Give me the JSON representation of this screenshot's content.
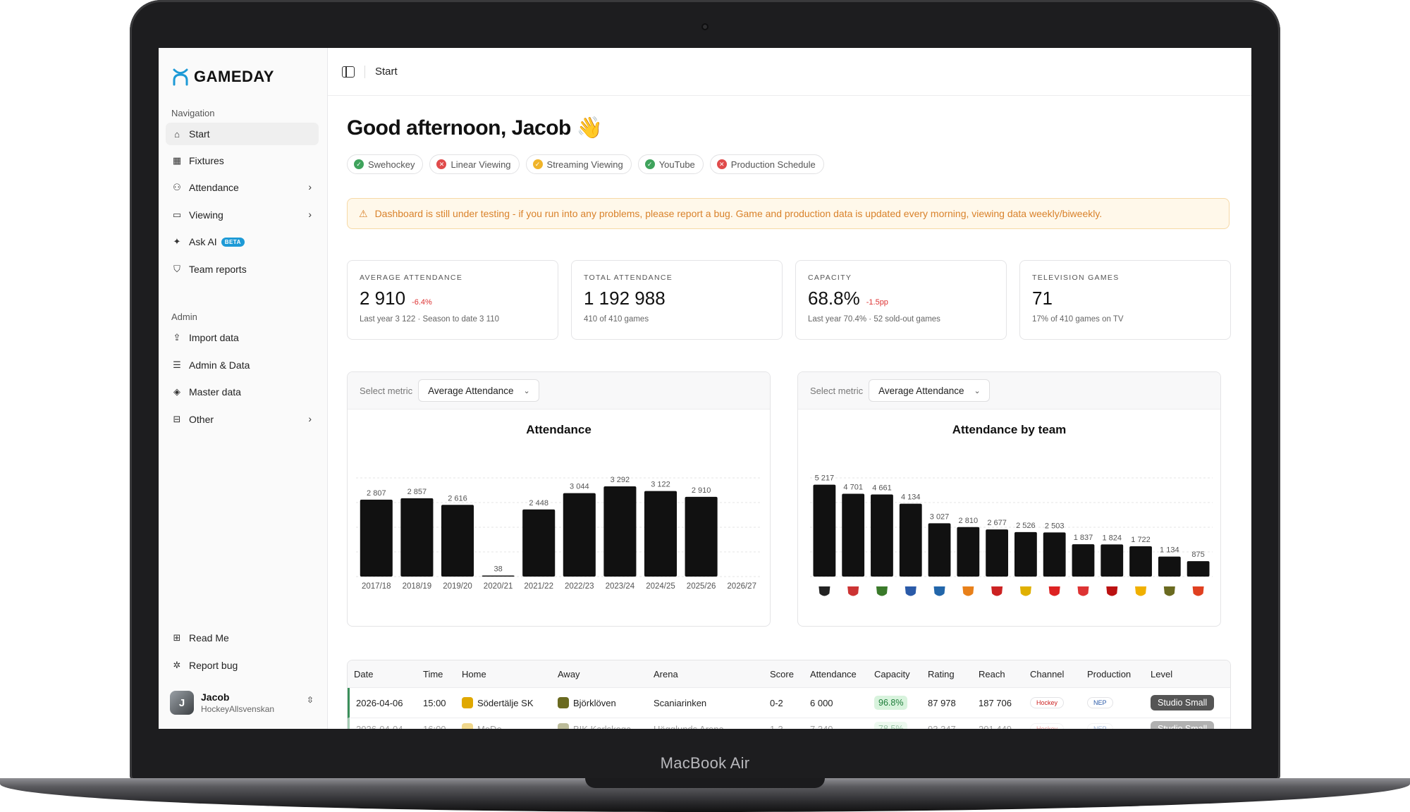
{
  "device": {
    "label": "MacBook Air"
  },
  "app": {
    "name": "GAMEDAY"
  },
  "sidebar": {
    "nav_title": "Navigation",
    "nav_items": [
      {
        "label": "Start",
        "icon": "home-icon"
      },
      {
        "label": "Fixtures",
        "icon": "calendar-icon"
      },
      {
        "label": "Attendance",
        "icon": "users-icon"
      },
      {
        "label": "Viewing",
        "icon": "tv-icon"
      },
      {
        "label": "Ask AI",
        "icon": "sparkles-icon",
        "badge": "BETA"
      },
      {
        "label": "Team reports",
        "icon": "shield-icon"
      }
    ],
    "admin_title": "Admin",
    "admin_items": [
      {
        "label": "Import data",
        "icon": "upload-icon"
      },
      {
        "label": "Admin & Data",
        "icon": "database-icon"
      },
      {
        "label": "Master data",
        "icon": "layers-icon"
      },
      {
        "label": "Other",
        "icon": "book-icon"
      }
    ],
    "footer_items": [
      {
        "label": "Read Me",
        "icon": "book-open-icon"
      },
      {
        "label": "Report bug",
        "icon": "bug-icon"
      }
    ],
    "user": {
      "name": "Jacob",
      "org": "HockeyAllsvenskan"
    }
  },
  "topbar": {
    "breadcrumb": "Start"
  },
  "greeting": "Good afternoon, Jacob 👋",
  "sources": [
    {
      "label": "Swehockey",
      "status": "ok",
      "color": "#3fa35c"
    },
    {
      "label": "Linear Viewing",
      "status": "error",
      "color": "#e04b4b"
    },
    {
      "label": "Streaming Viewing",
      "status": "warning",
      "color": "#f0b429"
    },
    {
      "label": "YouTube",
      "status": "ok",
      "color": "#3fa35c"
    },
    {
      "label": "Production Schedule",
      "status": "error",
      "color": "#e04b4b"
    }
  ],
  "alert": "Dashboard is still under testing - if you run into any problems, please report a bug. Game and production data is updated every morning, viewing data weekly/biweekly.",
  "stats": [
    {
      "label": "Average Attendance",
      "value": "2 910",
      "delta": "-6.4%",
      "sub": "Last year 3 122 · Season to date 3 110"
    },
    {
      "label": "Total Attendance",
      "value": "1 192 988",
      "delta": "",
      "sub": "410 of 410 games"
    },
    {
      "label": "Capacity",
      "value": "68.8%",
      "delta": "-1.5pp",
      "sub": "Last year 70.4% · 52 sold-out games"
    },
    {
      "label": "Television Games",
      "value": "71",
      "delta": "",
      "sub": "17% of 410 games on TV"
    }
  ],
  "metric_selector": {
    "label": "Select metric",
    "value": "Average Attendance"
  },
  "chart_data": [
    {
      "type": "bar",
      "title": "Attendance",
      "categories": [
        "2017/18",
        "2018/19",
        "2019/20",
        "2020/21",
        "2021/22",
        "2022/23",
        "2023/24",
        "2024/25",
        "2025/26",
        "2026/27"
      ],
      "values": [
        2807,
        2857,
        2616,
        38,
        2448,
        3044,
        3292,
        3122,
        2910,
        null
      ],
      "value_labels": [
        "2 807",
        "2 857",
        "2 616",
        "38",
        "2 448",
        "3 044",
        "3 292",
        "3 122",
        "2 910",
        ""
      ],
      "color": "#111111",
      "ylim": [
        0,
        3600
      ],
      "grid": true
    },
    {
      "type": "bar",
      "title": "Attendance by team",
      "categories": [
        "team-1",
        "team-2",
        "team-3",
        "team-4",
        "team-5",
        "team-6",
        "team-7",
        "team-8",
        "team-9",
        "team-10",
        "team-11",
        "team-12",
        "team-13",
        "team-14"
      ],
      "category_colors": [
        "#222",
        "#c33",
        "#3a7a2a",
        "#2a5aa8",
        "#2266aa",
        "#e8801a",
        "#c22",
        "#e0b000",
        "#d22",
        "#d33",
        "#b11",
        "#f0b000",
        "#6a6a20",
        "#e04020"
      ],
      "values": [
        5217,
        4701,
        4661,
        4134,
        3027,
        2810,
        2677,
        2526,
        2503,
        1837,
        1824,
        1722,
        1134,
        875
      ],
      "value_labels": [
        "5 217",
        "4 701",
        "4 661",
        "4 134",
        "3 027",
        "2 810",
        "2 677",
        "2 526",
        "2 503",
        "1 837",
        "1 824",
        "1 722",
        "1 134",
        "875"
      ],
      "color": "#111111",
      "ylim": [
        0,
        5600
      ],
      "grid": true
    }
  ],
  "table": {
    "columns": [
      "Date",
      "Time",
      "Home",
      "Away",
      "Arena",
      "Score",
      "Attendance",
      "Capacity",
      "Rating",
      "Reach",
      "Channel",
      "Production",
      "Level"
    ],
    "rows": [
      {
        "date": "2026-04-06",
        "time": "15:00",
        "home": "Södertälje SK",
        "away": "Björklöven",
        "arena": "Scaniarinken",
        "score": "0-2",
        "attendance": "6 000",
        "capacity": "96.8%",
        "rating": "87 978",
        "reach": "187 706",
        "channel": "Hockey",
        "production": "NEP",
        "level": "Studio Small"
      },
      {
        "date": "2026-04-04",
        "time": "16:00",
        "home": "MoDo",
        "away": "BIK Karlskoga",
        "arena": "Hägglunds Arena",
        "score": "1-3",
        "attendance": "7 340",
        "capacity": "78.5%",
        "rating": "93 347",
        "reach": "201 449",
        "channel": "Hockey",
        "production": "NEP",
        "level": "Studio Small"
      }
    ]
  }
}
